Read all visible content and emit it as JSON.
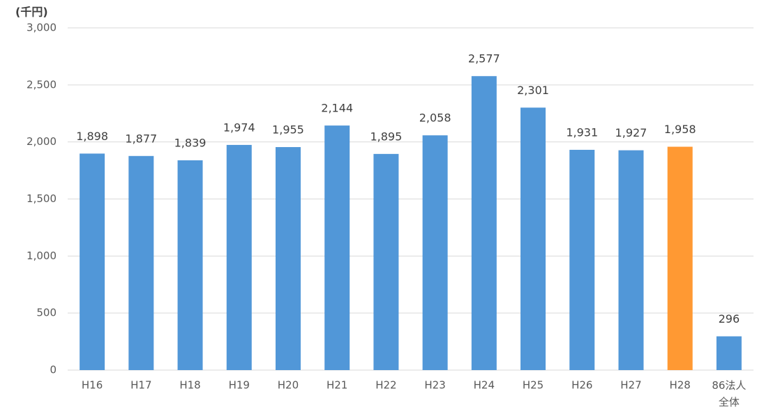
{
  "chart_data": {
    "type": "bar",
    "y_axis_label": "(千円)",
    "categories": [
      "H16",
      "H17",
      "H18",
      "H19",
      "H20",
      "H21",
      "H22",
      "H23",
      "H24",
      "H25",
      "H26",
      "H27",
      "H28",
      "86法人全体"
    ],
    "values": [
      1898,
      1877,
      1839,
      1974,
      1955,
      2144,
      1895,
      2058,
      2577,
      2301,
      1931,
      1927,
      1958,
      296
    ],
    "value_labels": [
      "1,898",
      "1,877",
      "1,839",
      "1,974",
      "1,955",
      "2,144",
      "1,895",
      "2,058",
      "2,577",
      "2,301",
      "1,931",
      "1,927",
      "1,958",
      "296"
    ],
    "colors": [
      "#5197d8",
      "#5197d8",
      "#5197d8",
      "#5197d8",
      "#5197d8",
      "#5197d8",
      "#5197d8",
      "#5197d8",
      "#5197d8",
      "#5197d8",
      "#5197d8",
      "#5197d8",
      "#ff9933",
      "#5197d8"
    ],
    "ylim": [
      0,
      3000
    ],
    "yticks": [
      0,
      500,
      {
        "value": 1000,
        "label": "1,000"
      },
      {
        "value": 1500,
        "label": "1,500"
      },
      {
        "value": 2000,
        "label": "2,000"
      },
      {
        "value": 2500,
        "label": "2,500"
      },
      {
        "value": 3000,
        "label": "3,000"
      }
    ],
    "grid": true
  }
}
